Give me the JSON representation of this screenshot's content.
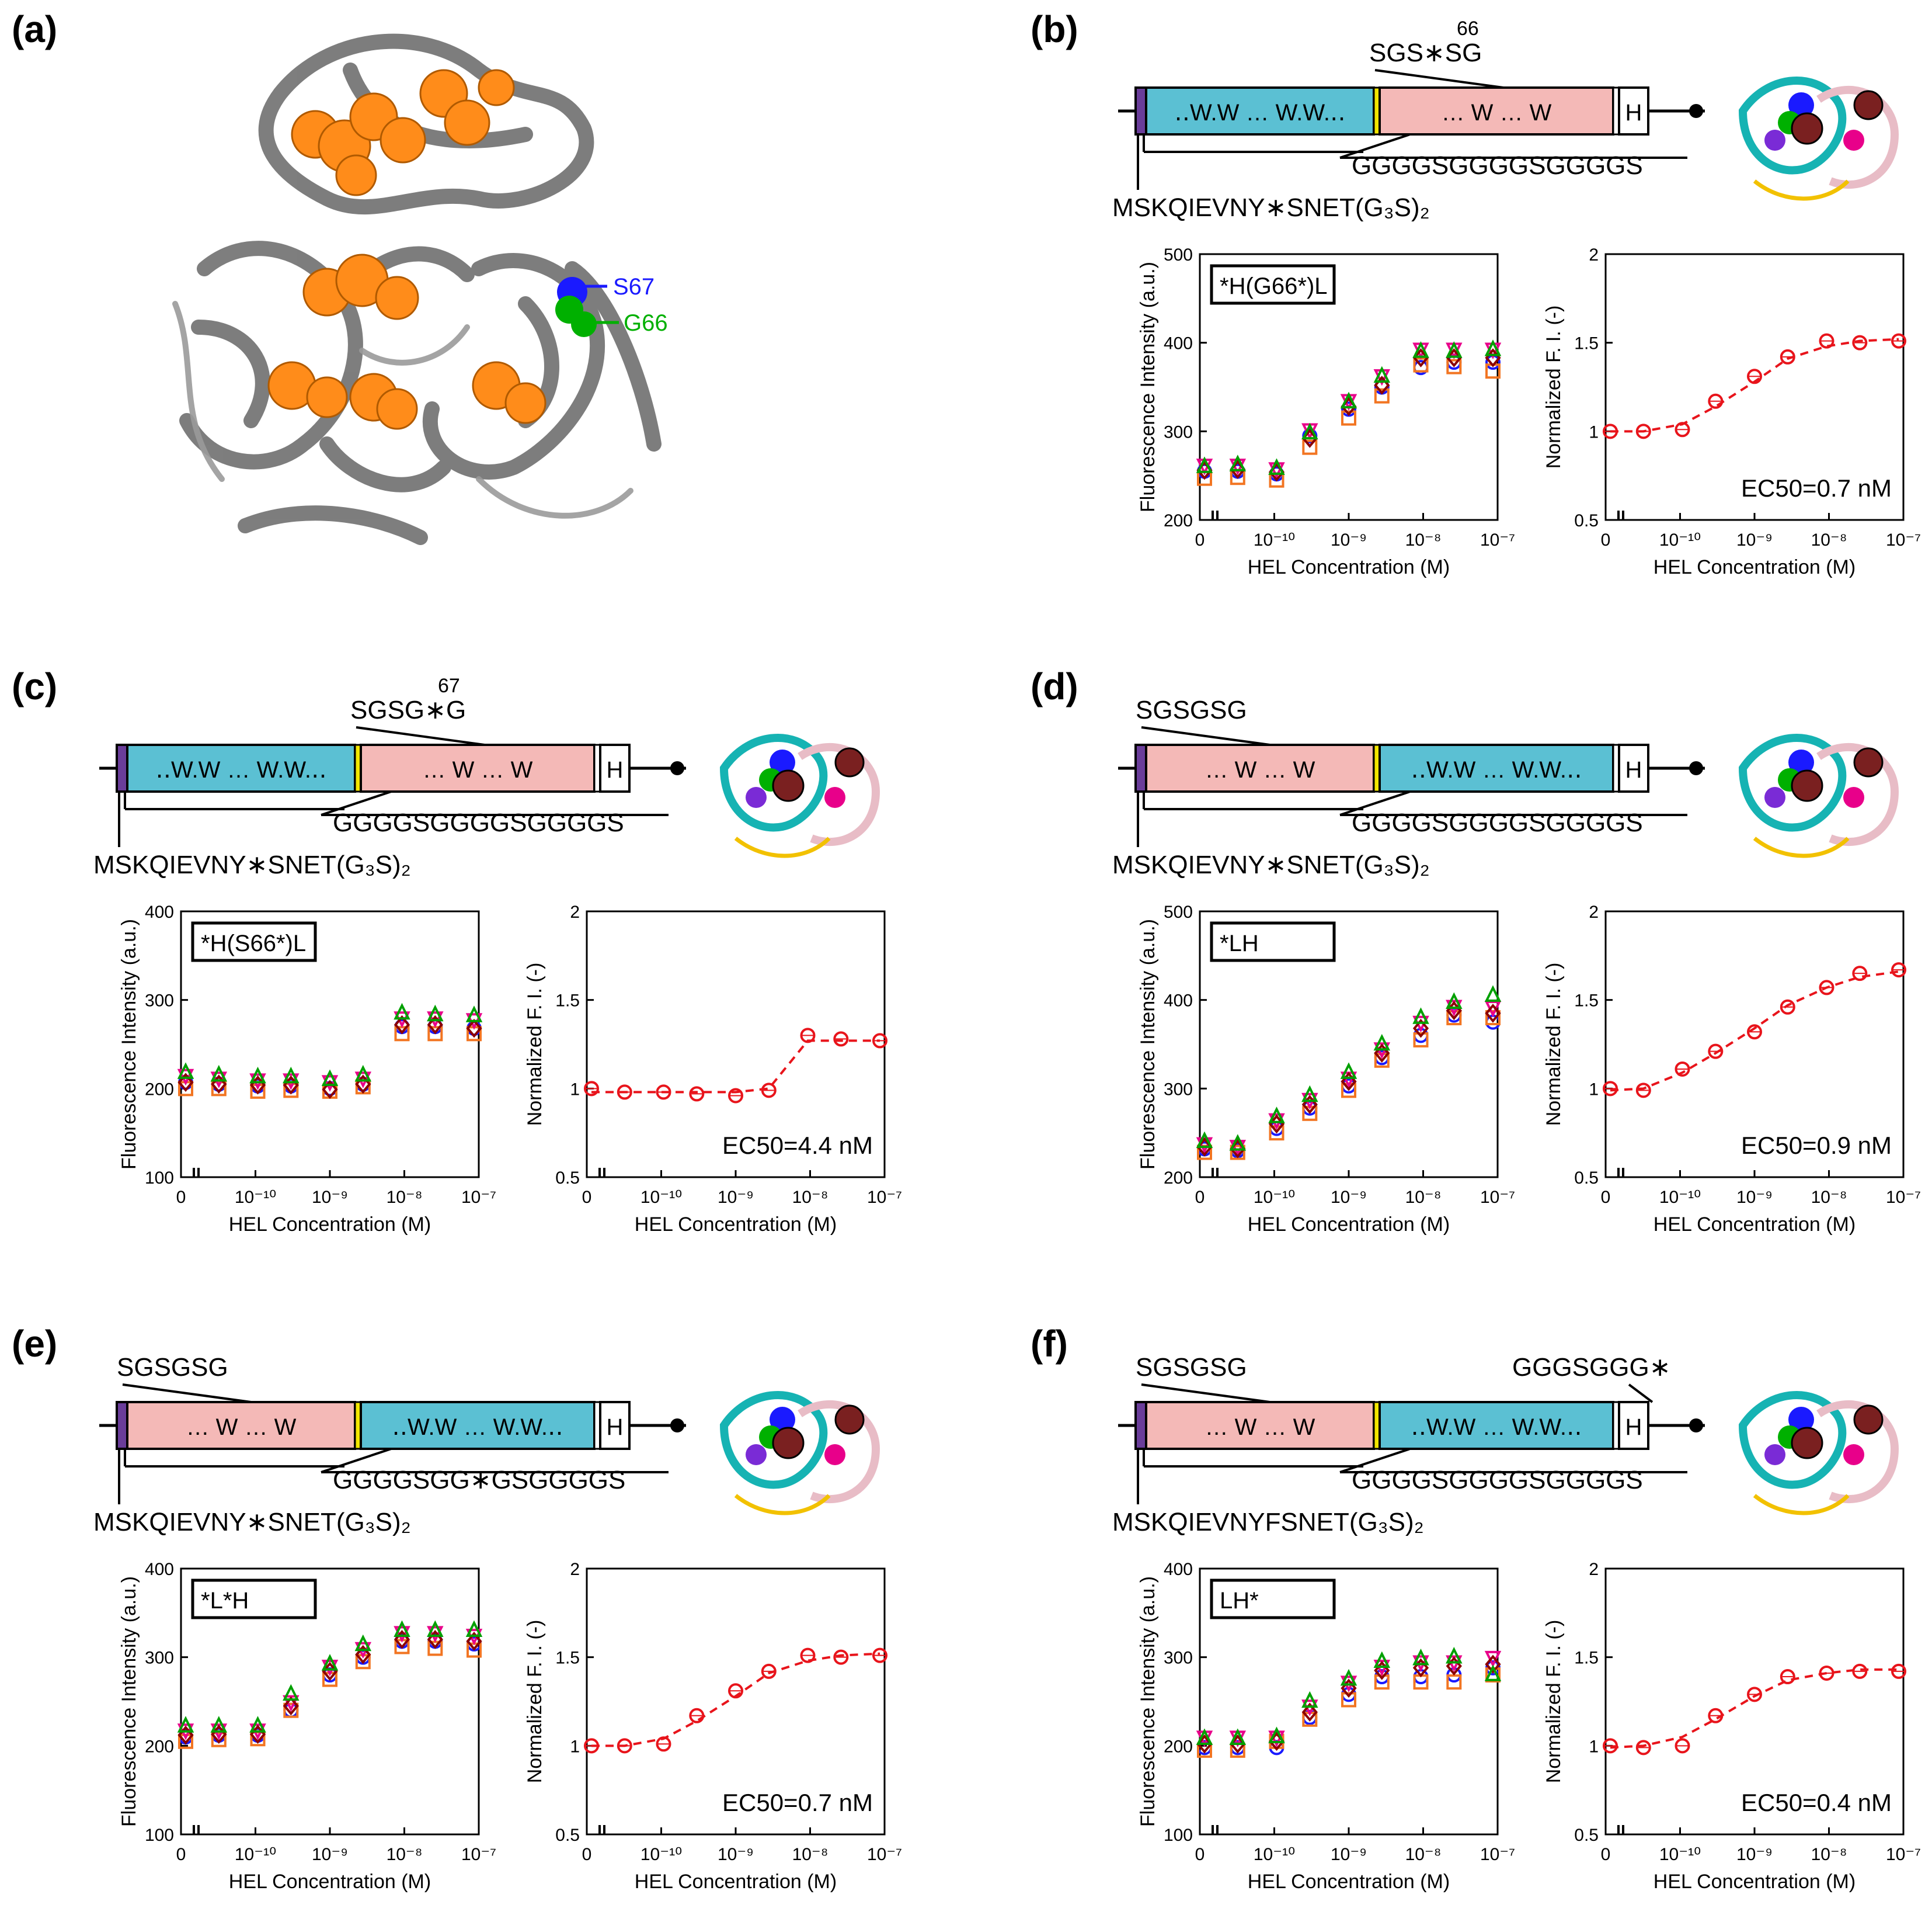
{
  "panel_a": {
    "label": "(a)",
    "residue_labels": {
      "s67": "S67",
      "g66": "G66"
    },
    "colors": {
      "s67": "#1a1aff",
      "g66": "#00b000",
      "highlight": "#ff8c1a",
      "ribbon": "#6b6b6b"
    }
  },
  "constructs": [
    {
      "id": "b",
      "label": "(b)",
      "seq_labels": {
        "top": "SGS∗SG",
        "top_num": "66",
        "linker": "GGGGSGGGGSGGGGS",
        "n_term": "MSKQIEVNY∗SNET(G₃S)₂"
      },
      "domains": [
        {
          "type": "VH",
          "text": "‥W.W … W.W.‥"
        },
        {
          "type": "VL",
          "text": "… W … W"
        }
      ],
      "his": "H"
    },
    {
      "id": "c",
      "label": "(c)",
      "seq_labels": {
        "top": "SGSG∗G",
        "top_num": "67",
        "linker": "GGGGSGGGGSGGGGS",
        "n_term": "MSKQIEVNY∗SNET(G₃S)₂"
      },
      "domains": [
        {
          "type": "VH",
          "text": "‥W.W … W.W.‥"
        },
        {
          "type": "VL",
          "text": "… W … W"
        }
      ],
      "his": "H"
    },
    {
      "id": "d",
      "label": "(d)",
      "seq_labels": {
        "top": "SGSGSG",
        "top_num": "",
        "linker": "GGGGSGGGGSGGGGS",
        "n_term": "MSKQIEVNY∗SNET(G₃S)₂"
      },
      "domains": [
        {
          "type": "VL",
          "text": "… W … W"
        },
        {
          "type": "VH",
          "text": "‥W.W … W.W.‥"
        }
      ],
      "his": "H"
    },
    {
      "id": "e",
      "label": "(e)",
      "seq_labels": {
        "top": "SGSGSG",
        "top_num": "",
        "linker": "GGGGSGG∗GSGGGGS",
        "n_term": "MSKQIEVNY∗SNET(G₃S)₂"
      },
      "domains": [
        {
          "type": "VL",
          "text": "… W … W"
        },
        {
          "type": "VH",
          "text": "‥W.W … W.W.‥"
        }
      ],
      "his": "H"
    },
    {
      "id": "f",
      "label": "(f)",
      "seq_labels": {
        "top": "SGSGSG",
        "top_num": "",
        "top_right": "GGGSGGG∗",
        "linker": "GGGGSGGGGSGGGGS",
        "n_term": "MSKQIEVNYFSNET(G₃S)₂"
      },
      "domains": [
        {
          "type": "VL",
          "text": "… W … W"
        },
        {
          "type": "VH",
          "text": "‥W.W … W.W.‥"
        }
      ],
      "his": "H"
    }
  ],
  "colors": {
    "VH": "#5bc0d3",
    "VL": "#f4b9b7",
    "tag_purple": "#6a3d9a",
    "linker_yellow": "#f2e600",
    "star_red": "#e8141b",
    "fit_red": "#e8141b",
    "rep1": "#1a1aff",
    "rep2": "#f27522",
    "rep3": "#e8008a",
    "rep4": "#8b0000",
    "rep5": "#00a000"
  },
  "chart_data": [
    {
      "panel": "b",
      "type": "scatter",
      "tag": "*H(G66*)L",
      "xlabel": "HEL Concentration (M)",
      "ylabel": "Fluorescence Intensity (a.u.)",
      "x_ticks": [
        "0",
        "10⁻¹⁰",
        "10⁻⁹",
        "10⁻⁸",
        "10⁻⁷"
      ],
      "ylim": [
        200,
        500
      ],
      "y_ticks": [
        "200",
        "300",
        "400",
        "500"
      ],
      "x": [
        "0",
        "3e-11",
        "1e-10",
        "3e-10",
        "1e-9",
        "3e-9",
        "1e-8",
        "3e-8",
        "1e-7"
      ],
      "series": [
        {
          "name": "replicate 1",
          "marker": "circle",
          "values": [
            255,
            255,
            252,
            295,
            325,
            350,
            372,
            378,
            378
          ]
        },
        {
          "name": "replicate 2",
          "marker": "square",
          "values": [
            247,
            248,
            245,
            282,
            315,
            340,
            375,
            373,
            368
          ]
        },
        {
          "name": "replicate 3",
          "marker": "inv-triangle",
          "values": [
            262,
            262,
            258,
            302,
            335,
            363,
            393,
            393,
            393
          ]
        },
        {
          "name": "replicate 4",
          "marker": "diamond",
          "values": [
            256,
            257,
            254,
            292,
            328,
            352,
            383,
            383,
            383
          ]
        },
        {
          "name": "replicate 5",
          "marker": "triangle",
          "values": [
            260,
            262,
            258,
            298,
            333,
            362,
            390,
            390,
            392
          ]
        }
      ]
    },
    {
      "panel": "b",
      "type": "line",
      "xlabel": "HEL Concentration (M)",
      "ylabel": "Normalized F. I. (-)",
      "ylim": [
        0.5,
        2
      ],
      "y_ticks": [
        "0.5",
        "1",
        "1.5",
        "2"
      ],
      "x_ticks": [
        "0",
        "10⁻¹⁰",
        "10⁻⁹",
        "10⁻⁸",
        "10⁻⁷"
      ],
      "x": [
        "0",
        "3e-11",
        "1e-10",
        "3e-10",
        "1e-9",
        "3e-9",
        "1e-8",
        "3e-8",
        "1e-7"
      ],
      "values": [
        1.0,
        1.0,
        1.01,
        1.17,
        1.31,
        1.42,
        1.51,
        1.5,
        1.51
      ],
      "fit": [
        1.0,
        1.0,
        1.04,
        1.14,
        1.28,
        1.41,
        1.48,
        1.51,
        1.52
      ],
      "annotation": "EC50=0.7 nM"
    },
    {
      "panel": "c",
      "type": "scatter",
      "tag": "*H(S66*)L",
      "xlabel": "HEL Concentration (M)",
      "ylabel": "Fluorescence Intensity (a.u.)",
      "ylim": [
        100,
        400
      ],
      "y_ticks": [
        "100",
        "200",
        "300",
        "400"
      ],
      "x_ticks": [
        "0",
        "10⁻¹⁰",
        "10⁻⁹",
        "10⁻⁸",
        "10⁻⁷"
      ],
      "x": [
        "0",
        "3e-11",
        "1e-10",
        "3e-10",
        "1e-9",
        "3e-9",
        "1e-8",
        "3e-8",
        "1e-7"
      ],
      "series": [
        {
          "name": "replicate 1",
          "marker": "circle",
          "values": [
            207,
            205,
            203,
            203,
            200,
            205,
            270,
            270,
            268
          ]
        },
        {
          "name": "replicate 2",
          "marker": "square",
          "values": [
            200,
            200,
            197,
            198,
            197,
            202,
            262,
            262,
            262
          ]
        },
        {
          "name": "replicate 3",
          "marker": "inv-triangle",
          "values": [
            215,
            212,
            210,
            210,
            208,
            212,
            280,
            280,
            278
          ]
        },
        {
          "name": "replicate 4",
          "marker": "diamond",
          "values": [
            207,
            205,
            204,
            204,
            199,
            205,
            272,
            272,
            268
          ]
        },
        {
          "name": "replicate 5",
          "marker": "triangle",
          "values": [
            218,
            215,
            213,
            213,
            210,
            215,
            285,
            283,
            282
          ]
        }
      ]
    },
    {
      "panel": "c",
      "type": "line",
      "xlabel": "HEL Concentration (M)",
      "ylabel": "Normalized F. I. (-)",
      "ylim": [
        0.5,
        2
      ],
      "y_ticks": [
        "0.5",
        "1",
        "1.5",
        "2"
      ],
      "x_ticks": [
        "0",
        "10⁻¹⁰",
        "10⁻⁹",
        "10⁻⁸",
        "10⁻⁷"
      ],
      "x": [
        "0",
        "3e-11",
        "1e-10",
        "3e-10",
        "1e-9",
        "3e-9",
        "1e-8",
        "3e-8",
        "1e-7"
      ],
      "values": [
        1.0,
        0.98,
        0.98,
        0.97,
        0.96,
        0.99,
        1.3,
        1.28,
        1.27
      ],
      "fit": [
        0.98,
        0.98,
        0.98,
        0.98,
        0.98,
        1.0,
        1.27,
        1.27,
        1.27
      ],
      "annotation": "EC50=4.4 nM"
    },
    {
      "panel": "d",
      "type": "scatter",
      "tag": "*LH",
      "xlabel": "HEL Concentration (M)",
      "ylabel": "Fluorescence Intensity (a.u.)",
      "ylim": [
        200,
        500
      ],
      "y_ticks": [
        "200",
        "300",
        "400",
        "500"
      ],
      "x_ticks": [
        "0",
        "10⁻¹⁰",
        "10⁻⁹",
        "10⁻⁸",
        "10⁻⁷"
      ],
      "x": [
        "0",
        "3e-11",
        "1e-10",
        "3e-10",
        "1e-9",
        "3e-9",
        "1e-8",
        "3e-8",
        "1e-7"
      ],
      "series": [
        {
          "name": "replicate 1",
          "marker": "circle",
          "values": [
            232,
            230,
            255,
            278,
            303,
            335,
            360,
            383,
            375
          ]
        },
        {
          "name": "replicate 2",
          "marker": "square",
          "values": [
            228,
            228,
            250,
            272,
            298,
            332,
            355,
            380,
            380
          ]
        },
        {
          "name": "replicate 3",
          "marker": "inv-triangle",
          "values": [
            238,
            235,
            265,
            288,
            312,
            345,
            375,
            393,
            392
          ]
        },
        {
          "name": "replicate 4",
          "marker": "diamond",
          "values": [
            234,
            232,
            260,
            282,
            308,
            340,
            368,
            388,
            385
          ]
        },
        {
          "name": "replicate 5",
          "marker": "triangle",
          "values": [
            240,
            237,
            268,
            292,
            318,
            350,
            380,
            397,
            405
          ]
        }
      ]
    },
    {
      "panel": "d",
      "type": "line",
      "xlabel": "HEL Concentration (M)",
      "ylabel": "Normalized F. I. (-)",
      "ylim": [
        0.5,
        2
      ],
      "y_ticks": [
        "0.5",
        "1",
        "1.5",
        "2"
      ],
      "x_ticks": [
        "0",
        "10⁻¹⁰",
        "10⁻⁹",
        "10⁻⁸",
        "10⁻⁷"
      ],
      "x": [
        "0",
        "3e-11",
        "1e-10",
        "3e-10",
        "1e-9",
        "3e-9",
        "1e-8",
        "3e-8",
        "1e-7"
      ],
      "values": [
        1.0,
        0.99,
        1.11,
        1.21,
        1.32,
        1.46,
        1.57,
        1.65,
        1.67
      ],
      "fit": [
        0.99,
        1.0,
        1.09,
        1.2,
        1.34,
        1.47,
        1.57,
        1.63,
        1.66
      ],
      "annotation": "EC50=0.9 nM"
    },
    {
      "panel": "e",
      "type": "scatter",
      "tag": "*L*H",
      "xlabel": "HEL Concentration (M)",
      "ylabel": "Fluorescence Intensity (a.u.)",
      "ylim": [
        100,
        400
      ],
      "y_ticks": [
        "100",
        "200",
        "300",
        "400"
      ],
      "x_ticks": [
        "0",
        "10⁻¹⁰",
        "10⁻⁹",
        "10⁻⁸",
        "10⁻⁷"
      ],
      "x": [
        "0",
        "3e-11",
        "1e-10",
        "3e-10",
        "1e-9",
        "3e-9",
        "1e-8",
        "3e-8",
        "1e-7"
      ],
      "series": [
        {
          "name": "replicate 1",
          "marker": "circle",
          "values": [
            210,
            212,
            212,
            240,
            280,
            300,
            318,
            318,
            315
          ]
        },
        {
          "name": "replicate 2",
          "marker": "square",
          "values": [
            205,
            207,
            208,
            240,
            275,
            295,
            312,
            310,
            308
          ]
        },
        {
          "name": "replicate 3",
          "marker": "inv-triangle",
          "values": [
            218,
            218,
            218,
            250,
            290,
            310,
            328,
            328,
            325
          ]
        },
        {
          "name": "replicate 4",
          "marker": "diamond",
          "values": [
            212,
            213,
            213,
            245,
            284,
            303,
            320,
            320,
            318
          ]
        },
        {
          "name": "replicate 5",
          "marker": "triangle",
          "values": [
            222,
            222,
            222,
            258,
            292,
            314,
            330,
            330,
            330
          ]
        }
      ]
    },
    {
      "panel": "e",
      "type": "line",
      "xlabel": "HEL Concentration (M)",
      "ylabel": "Normalized F. I. (-)",
      "ylim": [
        0.5,
        2
      ],
      "y_ticks": [
        "0.5",
        "1",
        "1.5",
        "2"
      ],
      "x_ticks": [
        "0",
        "10⁻¹⁰",
        "10⁻⁹",
        "10⁻⁸",
        "10⁻⁷"
      ],
      "x": [
        "0",
        "3e-11",
        "1e-10",
        "3e-10",
        "1e-9",
        "3e-9",
        "1e-8",
        "3e-8",
        "1e-7"
      ],
      "values": [
        1.0,
        1.0,
        1.01,
        1.17,
        1.31,
        1.42,
        1.51,
        1.5,
        1.51
      ],
      "fit": [
        1.0,
        1.0,
        1.04,
        1.14,
        1.28,
        1.41,
        1.48,
        1.51,
        1.52
      ],
      "annotation": "EC50=0.7 nM"
    },
    {
      "panel": "f",
      "type": "scatter",
      "tag": "LH*",
      "xlabel": "HEL Concentration (M)",
      "ylabel": "Fluorescence Intensity (a.u.)",
      "ylim": [
        100,
        400
      ],
      "y_ticks": [
        "100",
        "200",
        "300",
        "400"
      ],
      "x_ticks": [
        "0",
        "10⁻¹⁰",
        "10⁻⁹",
        "10⁻⁸",
        "10⁻⁷"
      ],
      "x": [
        "0",
        "3e-11",
        "1e-10",
        "3e-10",
        "1e-9",
        "3e-9",
        "1e-8",
        "3e-8",
        "1e-7"
      ],
      "series": [
        {
          "name": "replicate 1",
          "marker": "circle",
          "values": [
            198,
            198,
            198,
            232,
            258,
            278,
            278,
            280,
            288
          ]
        },
        {
          "name": "replicate 2",
          "marker": "square",
          "values": [
            195,
            195,
            205,
            230,
            252,
            272,
            272,
            272,
            280
          ]
        },
        {
          "name": "replicate 3",
          "marker": "inv-triangle",
          "values": [
            210,
            210,
            210,
            245,
            272,
            290,
            295,
            295,
            300
          ]
        },
        {
          "name": "replicate 4",
          "marker": "diamond",
          "values": [
            202,
            202,
            205,
            238,
            265,
            285,
            288,
            290,
            292
          ]
        },
        {
          "name": "replicate 5",
          "marker": "triangle",
          "values": [
            208,
            208,
            210,
            250,
            275,
            295,
            298,
            300,
            280
          ]
        }
      ]
    },
    {
      "panel": "f",
      "type": "line",
      "xlabel": "HEL Concentration (M)",
      "ylabel": "Normalized F. I. (-)",
      "ylim": [
        0.5,
        2
      ],
      "y_ticks": [
        "0.5",
        "1",
        "1.5",
        "2"
      ],
      "x_ticks": [
        "0",
        "10⁻¹⁰",
        "10⁻⁹",
        "10⁻⁸",
        "10⁻⁷"
      ],
      "x": [
        "0",
        "3e-11",
        "1e-10",
        "3e-10",
        "1e-9",
        "3e-9",
        "1e-8",
        "3e-8",
        "1e-7"
      ],
      "values": [
        1.0,
        0.99,
        1.0,
        1.17,
        1.29,
        1.39,
        1.41,
        1.42,
        1.42
      ],
      "fit": [
        0.99,
        1.0,
        1.05,
        1.15,
        1.28,
        1.37,
        1.41,
        1.43,
        1.43
      ],
      "annotation": "EC50=0.4 nM"
    }
  ]
}
